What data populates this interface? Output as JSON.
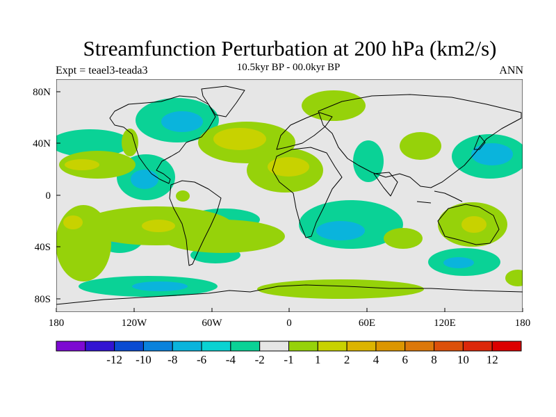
{
  "title": "Streamfunction Perturbation at 200 hPa (km2/s)",
  "subtitle": "10.5kyr BP - 00.0kyr BP",
  "left_label": "Expt = teael3-teada3",
  "right_label": "ANN",
  "axes": {
    "x_ticks": [
      "180",
      "120W",
      "60W",
      "0",
      "60E",
      "120E",
      "180"
    ],
    "y_ticks": [
      "80N",
      "40N",
      "0",
      "40S",
      "80S"
    ]
  },
  "colorbar": {
    "colors": [
      "#7d0ad2",
      "#3214d2",
      "#0a4bd2",
      "#0a82dc",
      "#0ab4dc",
      "#0ad2d2",
      "#0ad296",
      "#e6e6e6",
      "#96d20a",
      "#c8d200",
      "#dcb400",
      "#dc9600",
      "#dc780a",
      "#dc500a",
      "#dc280a",
      "#dc0000"
    ],
    "labels": [
      "-12",
      "-10",
      "-8",
      "-6",
      "-4",
      "-2",
      "-1",
      "1",
      "2",
      "4",
      "6",
      "8",
      "10",
      "12"
    ]
  },
  "colors": {
    "background": "#e6e6e6",
    "neg_weak": "#0ad296",
    "neg_mid": "#0ad2d2",
    "neg_strong": "#0ab4dc",
    "pos_weak": "#96d20a",
    "pos_mid": "#c8d200",
    "coast": "#000000"
  }
}
